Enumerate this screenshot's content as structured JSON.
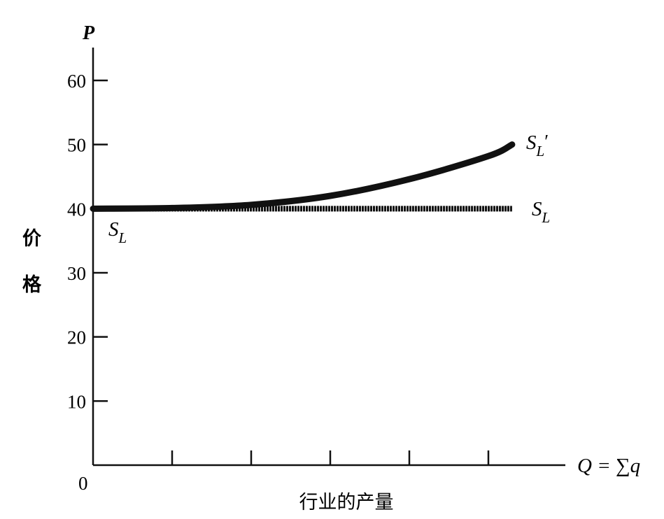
{
  "colors": {
    "line": "#111111",
    "axis": "#111111",
    "background": "#ffffff"
  },
  "chart_data": {
    "type": "line",
    "title": "",
    "axes": {
      "y_var": "P",
      "y_label_chars": [
        "价",
        "格"
      ],
      "y_ticks": [
        10,
        20,
        30,
        40,
        50,
        60
      ],
      "origin_label": "0",
      "x_var_math": "Q = ∑q",
      "x_label": "行业的产量",
      "x_tick_count": 5,
      "ylim": [
        0,
        60
      ]
    },
    "series": [
      {
        "id": "SL",
        "name": "S_L",
        "style": "horizontal",
        "points": [
          [
            0,
            40
          ],
          [
            1,
            40
          ],
          [
            2,
            40
          ],
          [
            3,
            40
          ],
          [
            4,
            40
          ],
          [
            5,
            40
          ],
          [
            5.3,
            40
          ]
        ]
      },
      {
        "id": "SLprime",
        "name": "S_L'",
        "style": "increasing-convex",
        "points": [
          [
            0,
            40
          ],
          [
            1,
            40.1
          ],
          [
            2,
            40.6
          ],
          [
            3,
            42
          ],
          [
            4,
            44.6
          ],
          [
            5,
            48.2
          ],
          [
            5.3,
            50
          ]
        ]
      }
    ],
    "labels": {
      "sl_left_main": "S",
      "sl_left_sub": "L",
      "sl_right_main": "S",
      "sl_right_sub": "L",
      "slp_main": "S",
      "slp_sub": "L",
      "slp_prime": "′"
    }
  }
}
